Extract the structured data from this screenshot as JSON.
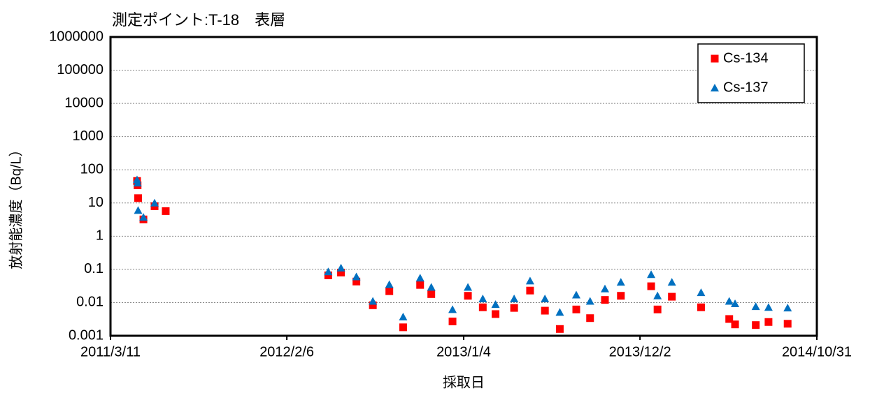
{
  "chart_data": {
    "type": "scatter",
    "title": "測定ポイント:T-18　表層",
    "x_label": "採取日",
    "y_label": "放射能濃度（Bq/L）",
    "y_scale": "log",
    "grid": true,
    "legend": "top right",
    "xlim": [
      "2011/3/11",
      "2014/10/31"
    ],
    "xticks": [
      "2011/3/11",
      "2012/2/6",
      "2013/1/4",
      "2013/12/2",
      "2014/10/31"
    ],
    "ylim": [
      0.001,
      1000000
    ],
    "yticks": [
      0.001,
      0.01,
      0.1,
      1,
      10,
      100,
      1000,
      10000,
      100000,
      1000000
    ],
    "series": [
      {
        "name": "Cs-134",
        "color": "#ff0000",
        "marker": "square",
        "x": [
          "2011/4/30",
          "2011/5/1",
          "2011/5/2",
          "2011/5/12",
          "2011/6/2",
          "2011/6/23",
          "2012/4/24",
          "2012/5/18",
          "2012/6/16",
          "2012/7/17",
          "2012/8/17",
          "2012/9/12",
          "2012/10/14",
          "2012/11/4",
          "2012/12/14",
          "2013/1/12",
          "2013/2/9",
          "2013/3/5",
          "2013/4/9",
          "2013/5/9",
          "2013/6/6",
          "2013/7/4",
          "2013/8/4",
          "2013/8/30",
          "2013/9/27",
          "2013/10/27",
          "2013/12/23",
          "2014/1/4",
          "2014/1/31",
          "2014/3/27",
          "2014/5/19",
          "2014/5/30",
          "2014/7/8",
          "2014/8/1",
          "2014/9/6"
        ],
        "values": [
          46,
          34,
          14,
          3.2,
          8,
          5.7,
          0.066,
          0.08,
          0.043,
          0.0083,
          0.022,
          0.0018,
          0.034,
          0.018,
          0.0027,
          0.016,
          0.0072,
          0.0045,
          0.0069,
          0.023,
          0.0057,
          0.0016,
          0.0062,
          0.0034,
          0.012,
          0.016,
          0.031,
          0.0062,
          0.015,
          0.0072,
          0.0032,
          0.0022,
          0.0021,
          0.0026,
          0.0023
        ]
      },
      {
        "name": "Cs-137",
        "color": "#0070c0",
        "marker": "triangle",
        "x": [
          "2011/4/30",
          "2011/5/1",
          "2011/5/2",
          "2011/5/12",
          "2011/6/2",
          "2012/4/24",
          "2012/5/18",
          "2012/6/16",
          "2012/7/17",
          "2012/8/17",
          "2012/9/12",
          "2012/10/14",
          "2012/11/4",
          "2012/12/14",
          "2013/1/12",
          "2013/2/9",
          "2013/3/5",
          "2013/4/9",
          "2013/5/9",
          "2013/6/6",
          "2013/7/4",
          "2013/8/4",
          "2013/8/30",
          "2013/9/27",
          "2013/10/27",
          "2013/12/23",
          "2014/1/4",
          "2014/1/31",
          "2014/3/27",
          "2014/5/19",
          "2014/5/30",
          "2014/7/8",
          "2014/8/1",
          "2014/9/6"
        ],
        "values": [
          50,
          40,
          6,
          3.7,
          10,
          0.085,
          0.11,
          0.06,
          0.011,
          0.035,
          0.0037,
          0.055,
          0.029,
          0.0062,
          0.029,
          0.013,
          0.0088,
          0.013,
          0.045,
          0.013,
          0.0051,
          0.017,
          0.011,
          0.026,
          0.041,
          0.07,
          0.016,
          0.041,
          0.02,
          0.011,
          0.0093,
          0.0076,
          0.0072,
          0.0069
        ]
      }
    ]
  }
}
